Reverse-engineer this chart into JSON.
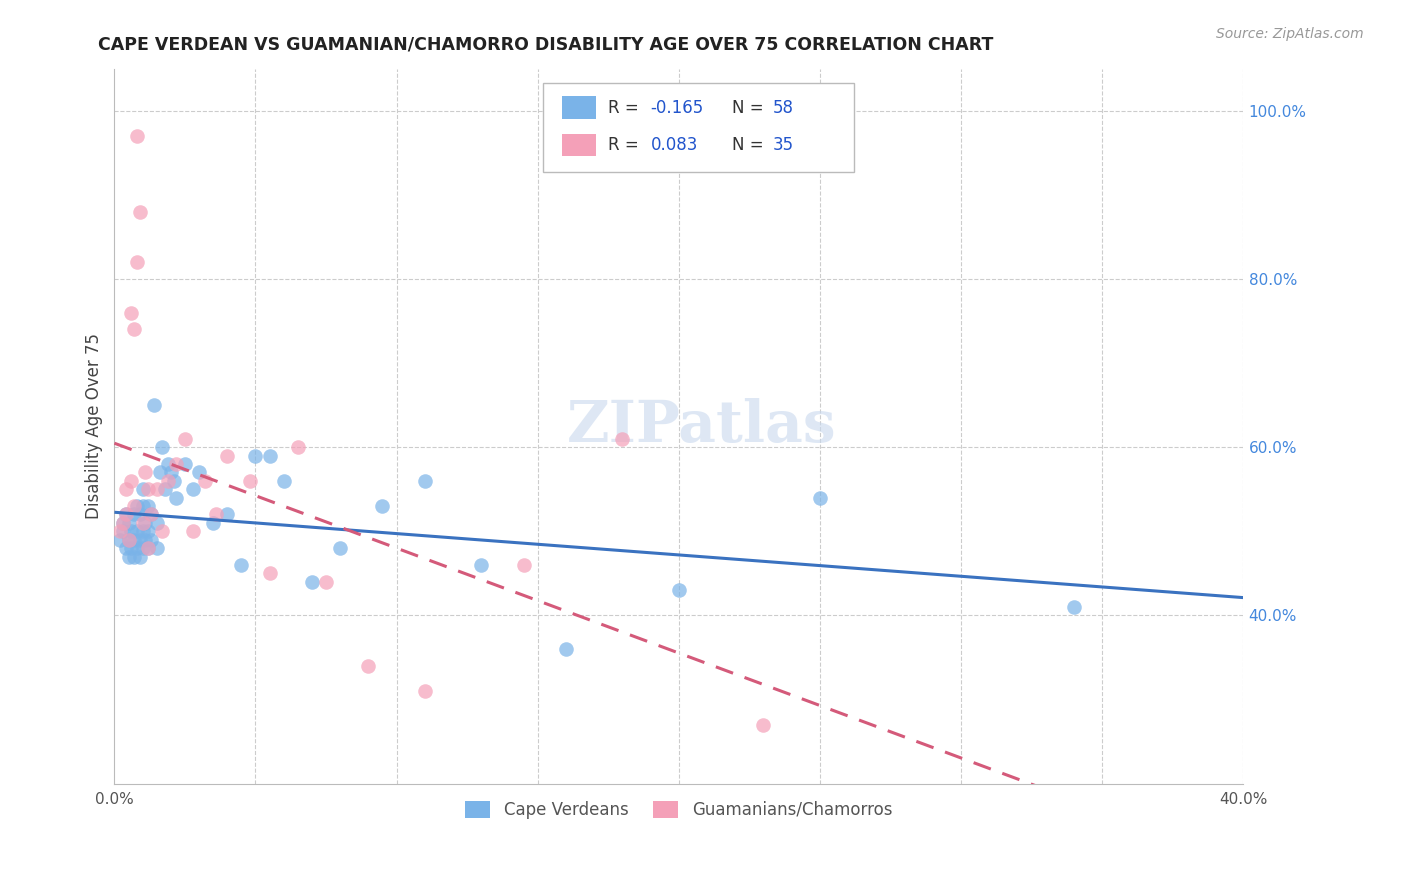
{
  "title": "CAPE VERDEAN VS GUAMANIAN/CHAMORRO DISABILITY AGE OVER 75 CORRELATION CHART",
  "source": "Source: ZipAtlas.com",
  "ylabel": "Disability Age Over 75",
  "xlim": [
    0.0,
    0.4
  ],
  "ylim": [
    0.2,
    1.05
  ],
  "yticks_right": [
    0.4,
    0.6,
    0.8,
    1.0
  ],
  "ytick_labels_right": [
    "40.0%",
    "60.0%",
    "80.0%",
    "100.0%"
  ],
  "xtick_positions": [
    0.0,
    0.05,
    0.1,
    0.15,
    0.2,
    0.25,
    0.3,
    0.35,
    0.4
  ],
  "xtick_labels": [
    "0.0%",
    "",
    "",
    "",
    "",
    "",
    "",
    "",
    "40.0%"
  ],
  "legend_r1": "-0.165",
  "legend_n1": "58",
  "legend_r2": "0.083",
  "legend_n2": "35",
  "color_blue": "#7ab3e8",
  "color_pink": "#f4a0b8",
  "line_color_blue": "#3a72c0",
  "line_color_pink": "#d45a7a",
  "watermark": "ZIPatlas",
  "cape_verdean_x": [
    0.002,
    0.003,
    0.003,
    0.004,
    0.004,
    0.005,
    0.005,
    0.005,
    0.006,
    0.006,
    0.007,
    0.007,
    0.007,
    0.008,
    0.008,
    0.008,
    0.009,
    0.009,
    0.009,
    0.01,
    0.01,
    0.01,
    0.01,
    0.011,
    0.011,
    0.012,
    0.012,
    0.012,
    0.013,
    0.013,
    0.014,
    0.015,
    0.015,
    0.016,
    0.017,
    0.018,
    0.019,
    0.02,
    0.021,
    0.022,
    0.025,
    0.028,
    0.03,
    0.035,
    0.04,
    0.045,
    0.05,
    0.055,
    0.06,
    0.07,
    0.08,
    0.095,
    0.11,
    0.13,
    0.16,
    0.2,
    0.25,
    0.34
  ],
  "cape_verdean_y": [
    0.49,
    0.5,
    0.51,
    0.48,
    0.52,
    0.47,
    0.49,
    0.51,
    0.48,
    0.5,
    0.47,
    0.49,
    0.52,
    0.48,
    0.5,
    0.53,
    0.47,
    0.49,
    0.52,
    0.48,
    0.5,
    0.53,
    0.55,
    0.49,
    0.51,
    0.48,
    0.5,
    0.53,
    0.49,
    0.52,
    0.65,
    0.48,
    0.51,
    0.57,
    0.6,
    0.55,
    0.58,
    0.57,
    0.56,
    0.54,
    0.58,
    0.55,
    0.57,
    0.51,
    0.52,
    0.46,
    0.59,
    0.59,
    0.56,
    0.44,
    0.48,
    0.53,
    0.56,
    0.46,
    0.36,
    0.43,
    0.54,
    0.41
  ],
  "guamanian_x": [
    0.002,
    0.003,
    0.004,
    0.004,
    0.005,
    0.006,
    0.007,
    0.008,
    0.009,
    0.01,
    0.011,
    0.012,
    0.013,
    0.015,
    0.017,
    0.019,
    0.022,
    0.025,
    0.028,
    0.032,
    0.036,
    0.04,
    0.048,
    0.055,
    0.065,
    0.075,
    0.09,
    0.11,
    0.145,
    0.18,
    0.23,
    0.006,
    0.007,
    0.008,
    0.012
  ],
  "guamanian_y": [
    0.5,
    0.51,
    0.52,
    0.55,
    0.49,
    0.56,
    0.53,
    0.97,
    0.88,
    0.51,
    0.57,
    0.55,
    0.52,
    0.55,
    0.5,
    0.56,
    0.58,
    0.61,
    0.5,
    0.56,
    0.52,
    0.59,
    0.56,
    0.45,
    0.6,
    0.44,
    0.34,
    0.31,
    0.46,
    0.61,
    0.27,
    0.76,
    0.74,
    0.82,
    0.48
  ]
}
